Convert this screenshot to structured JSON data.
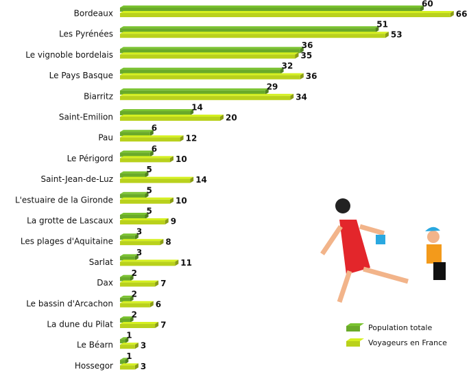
{
  "chart_data": {
    "type": "bar",
    "orientation": "horizontal",
    "categories": [
      "Bordeaux",
      "Les Pyrénées",
      "Le vignoble bordelais",
      "Le Pays Basque",
      "Biarritz",
      "Saint-Emilion",
      "Pau",
      "Le Périgord",
      "Saint-Jean-de-Luz",
      "L'estuaire de la Gironde",
      "La grotte de Lascaux",
      "Les plages d'Aquitaine",
      "Sarlat",
      "Dax",
      "Le bassin d'Arcachon",
      "La dune du Pilat",
      "Le Béarn",
      "Hossegor"
    ],
    "series": [
      {
        "name": "Population totale",
        "color": "#6aaa2a",
        "values": [
          60,
          51,
          36,
          32,
          29,
          14,
          6,
          6,
          5,
          5,
          5,
          3,
          3,
          2,
          2,
          2,
          1,
          1
        ]
      },
      {
        "name": "Voyageurs en France",
        "color": "#b9d11c",
        "values": [
          66,
          53,
          35,
          36,
          34,
          20,
          12,
          10,
          14,
          10,
          9,
          8,
          11,
          7,
          6,
          7,
          3,
          3
        ]
      }
    ],
    "legend": "bottom-right"
  }
}
